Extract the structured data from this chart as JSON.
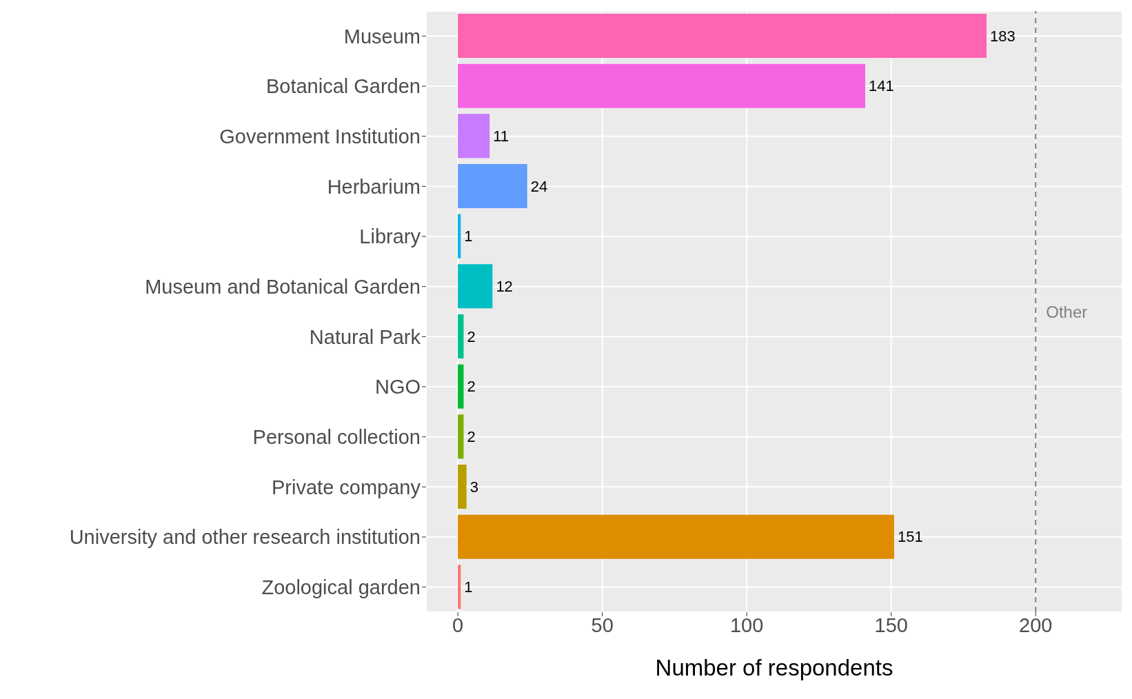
{
  "chart_data": {
    "type": "bar",
    "orientation": "horizontal",
    "xlabel": "Number of respondents",
    "categories": [
      "Museum",
      "Botanical Garden",
      "Government Institution",
      "Herbarium",
      "Library",
      "Museum and Botanical Garden",
      "Natural Park",
      "NGO",
      "Personal collection",
      "Private company",
      "University and other research institution",
      "Zoological garden"
    ],
    "values": [
      183,
      141,
      11,
      24,
      1,
      12,
      2,
      2,
      2,
      3,
      151,
      1
    ],
    "colors": [
      "#ff64b0",
      "#f564e3",
      "#c77cff",
      "#619cff",
      "#00b4f0",
      "#00bfc4",
      "#00c08b",
      "#00ba38",
      "#7cae00",
      "#b79f00",
      "#de8c00",
      "#f8766d"
    ],
    "xlim": [
      -11,
      230
    ],
    "xticks": [
      0,
      50,
      100,
      150,
      200
    ],
    "ref_lines": [
      {
        "axis": "x",
        "value": 200,
        "label": "Other",
        "color": "#808080",
        "line_style": "dashed"
      }
    ],
    "data_labels": true,
    "grid": true,
    "legend": false
  }
}
